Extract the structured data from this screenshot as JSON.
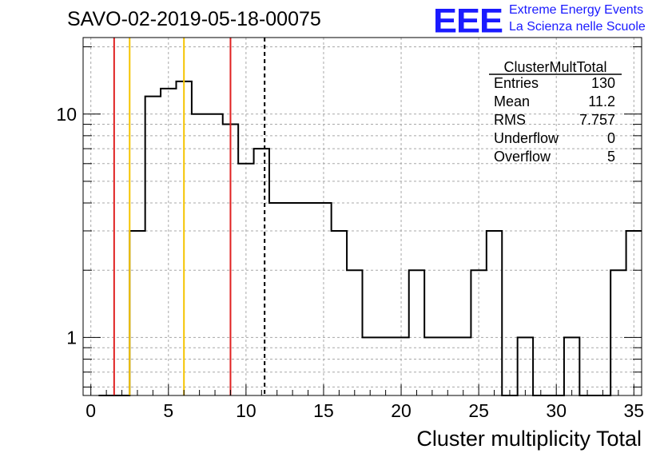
{
  "header": {
    "run_title": "SAVO-02-2019-05-18-00075",
    "logo_text": "EEE",
    "logo_line1": "Extreme Energy Events",
    "logo_line2": "La Scienza nelle Scuole"
  },
  "stats_box": {
    "title": "ClusterMultTotal",
    "rows": [
      {
        "label": "Entries",
        "value": "130"
      },
      {
        "label": "Mean",
        "value": "11.2"
      },
      {
        "label": "RMS",
        "value": "7.757"
      },
      {
        "label": "Underflow",
        "value": "0"
      },
      {
        "label": "Overflow",
        "value": "5"
      }
    ]
  },
  "chart_data": {
    "type": "histogram",
    "xlabel": "Cluster multiplicity Total",
    "ylabel": "",
    "yscale": "log",
    "xlim": [
      -0.5,
      35.5
    ],
    "ylim": [
      0.55,
      22
    ],
    "grid": true,
    "x_ticks": [
      0,
      5,
      10,
      15,
      20,
      25,
      30,
      35
    ],
    "y_ticks": [
      1,
      10
    ],
    "bin_edges": [
      0.5,
      1.5,
      2.5,
      3.5,
      4.5,
      5.5,
      6.5,
      7.5,
      8.5,
      9.5,
      10.5,
      11.5,
      12.5,
      13.5,
      14.5,
      15.5,
      16.5,
      17.5,
      18.5,
      19.5,
      20.5,
      21.5,
      22.5,
      23.5,
      24.5,
      25.5,
      26.5,
      27.5,
      28.5,
      29.5,
      30.5,
      31.5,
      32.5,
      33.5,
      34.5,
      35.5
    ],
    "bin_values": [
      0,
      0,
      3,
      12,
      13,
      14,
      10,
      10,
      9,
      6,
      7,
      4,
      4,
      4,
      4,
      3,
      2,
      1,
      1,
      1,
      2,
      1,
      1,
      1,
      2,
      3,
      0,
      1,
      0,
      0,
      1,
      0,
      0,
      2,
      3
    ],
    "vertical_lines": [
      {
        "x": 1.5,
        "color": "#e02020",
        "style": "solid"
      },
      {
        "x": 2.5,
        "color": "#f5c400",
        "style": "solid"
      },
      {
        "x": 6.0,
        "color": "#f5c400",
        "style": "solid"
      },
      {
        "x": 9.0,
        "color": "#e02020",
        "style": "solid"
      },
      {
        "x": 11.2,
        "color": "#000000",
        "style": "dashed"
      }
    ]
  }
}
